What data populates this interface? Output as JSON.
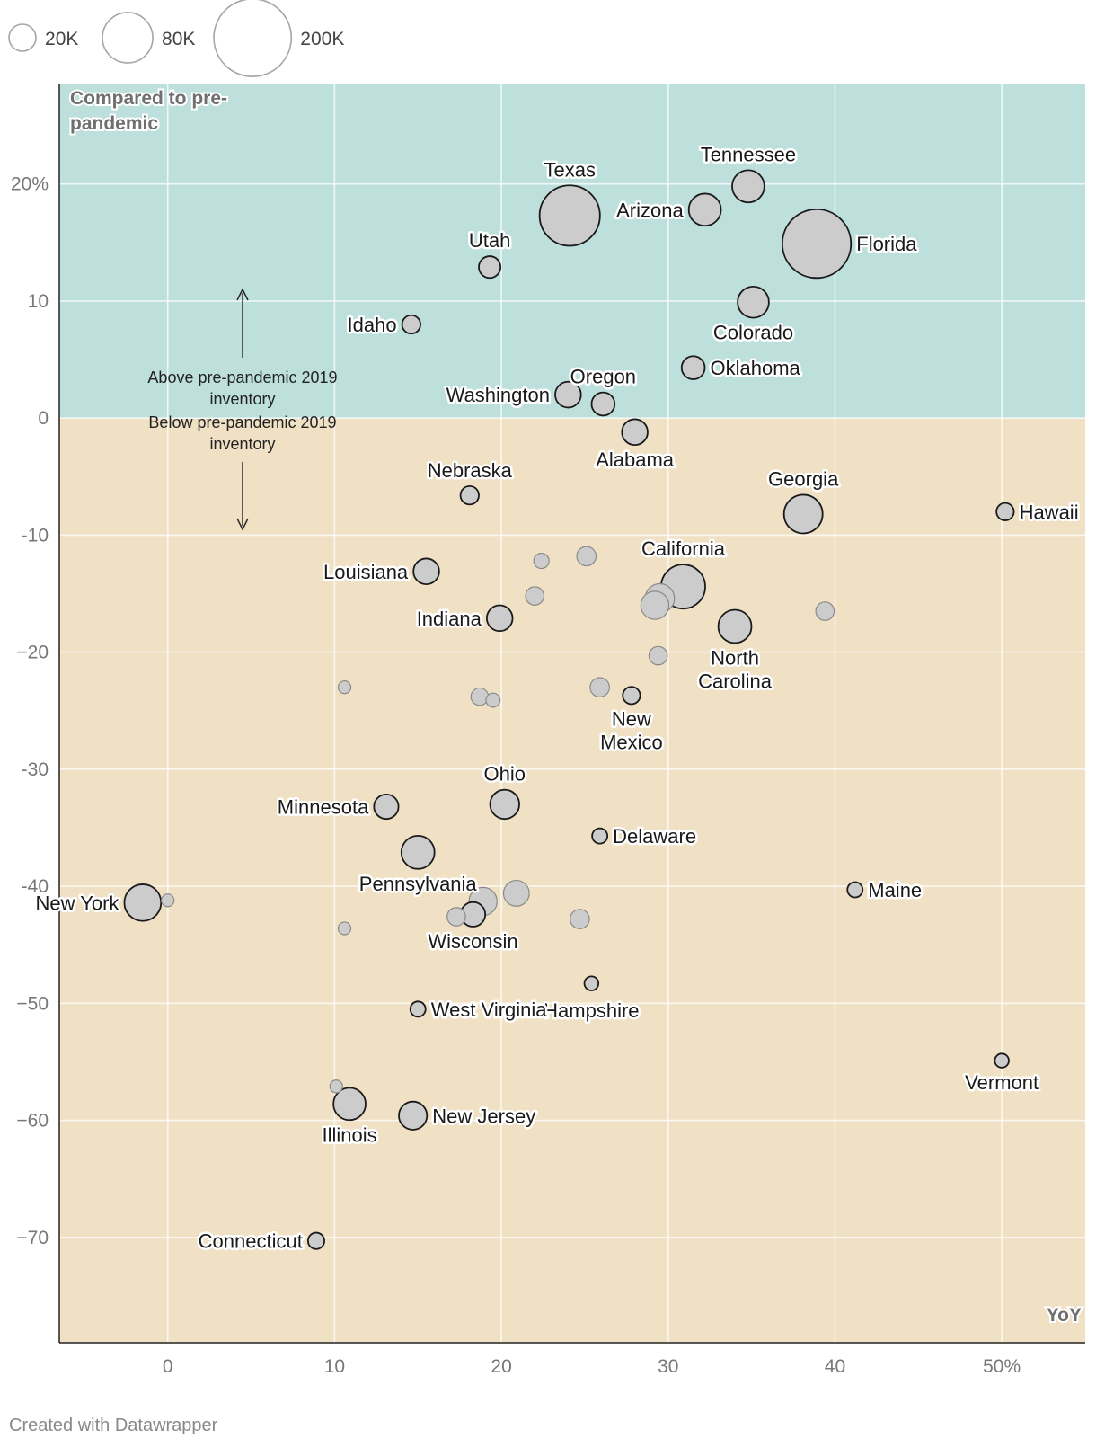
{
  "chart_data": {
    "type": "scatter",
    "title": "",
    "xlabel": "YoY",
    "ylabel": "Compared to pre-pandemic",
    "xlim": [
      -6.5,
      55
    ],
    "ylim": [
      -79,
      28.5
    ],
    "x_ticks": [
      {
        "value": 0,
        "label": "0"
      },
      {
        "value": 10,
        "label": "10"
      },
      {
        "value": 20,
        "label": "20"
      },
      {
        "value": 30,
        "label": "30"
      },
      {
        "value": 40,
        "label": "40"
      },
      {
        "value": 50,
        "label": "50%"
      }
    ],
    "y_ticks": [
      {
        "value": 20,
        "label": "20%"
      },
      {
        "value": 10,
        "label": "10"
      },
      {
        "value": 0,
        "label": "0"
      },
      {
        "value": -10,
        "label": "-10"
      },
      {
        "value": -20,
        "label": "−20"
      },
      {
        "value": -30,
        "label": "-30"
      },
      {
        "value": -40,
        "label": "-40"
      },
      {
        "value": -50,
        "label": "−50"
      },
      {
        "value": -60,
        "label": "−60"
      },
      {
        "value": -70,
        "label": "−70"
      }
    ],
    "size_legend": [
      {
        "value": 20000,
        "label": "20K"
      },
      {
        "value": 80000,
        "label": "80K"
      },
      {
        "value": 200000,
        "label": "200K"
      }
    ],
    "zones": {
      "above_label": "Compared to pre-pandemic",
      "above_color": "#bee0dd",
      "below_color": "#f0e1c5"
    },
    "annotations": {
      "above": [
        "Above pre-pandemic 2019",
        "inventory"
      ],
      "below": [
        "Below pre-pandemic 2019",
        "inventory"
      ]
    },
    "points": [
      {
        "name": "Texas",
        "x": 24.1,
        "y": 17.3,
        "size": 118000,
        "label": "Texas",
        "label_pos": "above"
      },
      {
        "name": "Tennessee",
        "x": 34.8,
        "y": 19.8,
        "size": 30000,
        "label": "Tennessee",
        "label_pos": "above"
      },
      {
        "name": "Arizona",
        "x": 32.2,
        "y": 17.8,
        "size": 30000,
        "label": "Arizona",
        "label_pos": "left"
      },
      {
        "name": "Florida",
        "x": 38.9,
        "y": 14.9,
        "size": 155000,
        "label": "Florida",
        "label_pos": "right"
      },
      {
        "name": "Utah",
        "x": 19.3,
        "y": 12.9,
        "size": 12000,
        "label": "Utah",
        "label_pos": "above"
      },
      {
        "name": "Idaho",
        "x": 14.6,
        "y": 8.0,
        "size": 8000,
        "label": "Idaho",
        "label_pos": "left"
      },
      {
        "name": "Colorado",
        "x": 35.1,
        "y": 9.9,
        "size": 28000,
        "label": "Colorado",
        "label_pos": "below"
      },
      {
        "name": "Oklahoma",
        "x": 31.5,
        "y": 4.3,
        "size": 14000,
        "label": "Oklahoma",
        "label_pos": "right"
      },
      {
        "name": "Washington",
        "x": 24.0,
        "y": 2.0,
        "size": 18000,
        "label": "Washington",
        "label_pos": "left"
      },
      {
        "name": "Oregon",
        "x": 26.1,
        "y": 1.2,
        "size": 14000,
        "label": "Oregon",
        "label_pos": "above"
      },
      {
        "name": "Alabama",
        "x": 28.0,
        "y": -1.2,
        "size": 18000,
        "label": "Alabama",
        "label_pos": "below"
      },
      {
        "name": "Nebraska",
        "x": 18.1,
        "y": -6.6,
        "size": 8000,
        "label": "Nebraska",
        "label_pos": "above"
      },
      {
        "name": "Georgia",
        "x": 38.1,
        "y": -8.2,
        "size": 45000,
        "label": "Georgia",
        "label_pos": "above"
      },
      {
        "name": "Hawaii",
        "x": 50.2,
        "y": -8.0,
        "size": 7000,
        "label": "Hawaii",
        "label_pos": "right"
      },
      {
        "name": "Louisiana",
        "x": 15.5,
        "y": -13.1,
        "size": 18000,
        "label": "Louisiana",
        "label_pos": "left"
      },
      {
        "name": "California",
        "x": 30.9,
        "y": -14.4,
        "size": 60000,
        "label": "California",
        "label_pos": "above"
      },
      {
        "name": "Indiana",
        "x": 19.9,
        "y": -17.1,
        "size": 18000,
        "label": "Indiana",
        "label_pos": "left"
      },
      {
        "name": "North Carolina",
        "x": 34.0,
        "y": -17.8,
        "size": 32000,
        "label": "North Carolina",
        "label_pos": "below"
      },
      {
        "name": "New Mexico",
        "x": 27.8,
        "y": -23.7,
        "size": 7000,
        "label": "New Mexico",
        "label_pos": "below"
      },
      {
        "name": "Ohio",
        "x": 20.2,
        "y": -33.0,
        "size": 24000,
        "label": "Ohio",
        "label_pos": "above"
      },
      {
        "name": "Minnesota",
        "x": 13.1,
        "y": -33.2,
        "size": 16000,
        "label": "Minnesota",
        "label_pos": "left"
      },
      {
        "name": "Delaware",
        "x": 25.9,
        "y": -35.7,
        "size": 5000,
        "label": "Delaware",
        "label_pos": "right"
      },
      {
        "name": "Pennsylvania",
        "x": 15.0,
        "y": -37.1,
        "size": 32000,
        "label": "Pennsylvania",
        "label_pos": "below"
      },
      {
        "name": "New York",
        "x": -1.5,
        "y": -41.4,
        "size": 40000,
        "label": "New York",
        "label_pos": "left"
      },
      {
        "name": "Maine",
        "x": 41.2,
        "y": -40.3,
        "size": 5000,
        "label": "Maine",
        "label_pos": "right"
      },
      {
        "name": "Wisconsin",
        "x": 18.3,
        "y": -42.4,
        "size": 16000,
        "label": "Wisconsin",
        "label_pos": "below"
      },
      {
        "name": "New Hampshire",
        "x": 25.4,
        "y": -48.3,
        "size": 4000,
        "label": "Hampshire",
        "label_pos": "below-near"
      },
      {
        "name": "West Virginia",
        "x": 15.0,
        "y": -50.5,
        "size": 5000,
        "label": "West Virginia",
        "label_pos": "right"
      },
      {
        "name": "Vermont",
        "x": 50.0,
        "y": -54.9,
        "size": 4000,
        "label": "Vermont",
        "label_pos": "below"
      },
      {
        "name": "Illinois",
        "x": 10.9,
        "y": -58.6,
        "size": 30000,
        "label": "Illinois",
        "label_pos": "below"
      },
      {
        "name": "New Jersey",
        "x": 14.7,
        "y": -59.6,
        "size": 22000,
        "label": "New Jersey",
        "label_pos": "right"
      },
      {
        "name": "Connecticut",
        "x": 8.9,
        "y": -70.3,
        "size": 6000,
        "label": "Connecticut",
        "label_pos": "left"
      },
      {
        "name": "",
        "x": 22.4,
        "y": -12.2,
        "size": 5000
      },
      {
        "name": "",
        "x": 25.1,
        "y": -11.8,
        "size": 9000
      },
      {
        "name": "",
        "x": 22.0,
        "y": -15.2,
        "size": 8000
      },
      {
        "name": "",
        "x": 29.5,
        "y": -15.4,
        "size": 24000
      },
      {
        "name": "",
        "x": 29.2,
        "y": -16.0,
        "size": 22000
      },
      {
        "name": "",
        "x": 39.4,
        "y": -16.5,
        "size": 8000
      },
      {
        "name": "",
        "x": 29.4,
        "y": -20.3,
        "size": 8000
      },
      {
        "name": "",
        "x": 10.6,
        "y": -23.0,
        "size": 3000
      },
      {
        "name": "",
        "x": 18.7,
        "y": -23.8,
        "size": 7000
      },
      {
        "name": "",
        "x": 19.5,
        "y": -24.1,
        "size": 4000
      },
      {
        "name": "",
        "x": 25.9,
        "y": -23.0,
        "size": 9000
      },
      {
        "name": "",
        "x": 20.9,
        "y": -40.6,
        "size": 18000
      },
      {
        "name": "",
        "x": 18.9,
        "y": -41.3,
        "size": 22000
      },
      {
        "name": "",
        "x": 0.0,
        "y": -41.2,
        "size": 3000
      },
      {
        "name": "",
        "x": 17.3,
        "y": -42.6,
        "size": 8000
      },
      {
        "name": "",
        "x": 24.7,
        "y": -42.8,
        "size": 9000
      },
      {
        "name": "",
        "x": 10.6,
        "y": -43.6,
        "size": 3000
      },
      {
        "name": "",
        "x": 10.1,
        "y": -57.1,
        "size": 3000
      }
    ]
  },
  "footer": {
    "credit": "Created with Datawrapper"
  }
}
